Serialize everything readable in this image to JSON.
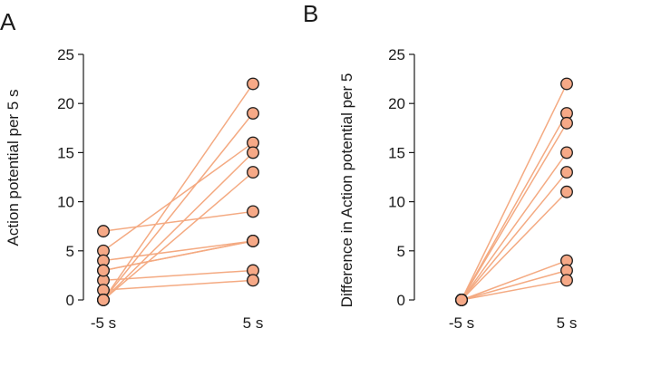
{
  "chart_data": [
    {
      "panel": "A",
      "type": "scatter",
      "categories": [
        "-5 s",
        "5 s"
      ],
      "ylabel": "Action potential per 5 s",
      "xlabel": "",
      "ylim": [
        0,
        25
      ],
      "yticks": [
        0,
        5,
        10,
        15,
        20,
        25
      ],
      "grid": false,
      "pairs": [
        [
          7,
          9
        ],
        [
          5,
          16
        ],
        [
          4,
          6
        ],
        [
          3,
          6
        ],
        [
          2,
          3
        ],
        [
          1,
          2
        ],
        [
          0,
          22
        ],
        [
          0,
          19
        ],
        [
          0,
          15
        ],
        [
          0,
          13
        ],
        [
          3,
          6
        ]
      ]
    },
    {
      "panel": "B",
      "type": "scatter",
      "categories": [
        "-5 s",
        "5 s"
      ],
      "ylabel": "Difference in Action potential per 5",
      "xlabel": "",
      "ylim": [
        0,
        25
      ],
      "yticks": [
        0,
        5,
        10,
        15,
        20,
        25
      ],
      "grid": false,
      "pairs": [
        [
          0,
          22
        ],
        [
          0,
          19
        ],
        [
          0,
          18
        ],
        [
          0,
          15
        ],
        [
          0,
          13
        ],
        [
          0,
          11
        ],
        [
          0,
          4
        ],
        [
          0,
          3
        ],
        [
          0,
          2
        ]
      ]
    }
  ],
  "colors": {
    "line": "#f4aa82",
    "marker": "#f6a987",
    "axis": "#1a1a1a"
  }
}
